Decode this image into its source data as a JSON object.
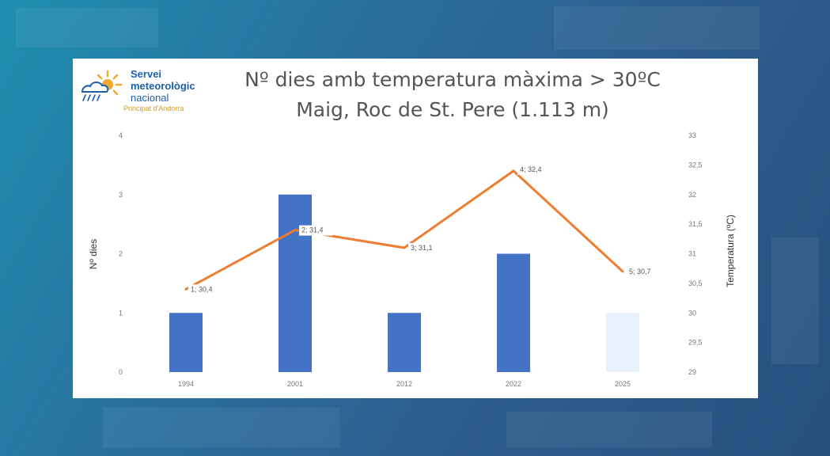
{
  "logo": {
    "line1": "Servei",
    "line2": "meteorològic",
    "line3": "nacional",
    "sub": "Principat d'Andorra",
    "icon": "sun-cloud-rain-icon"
  },
  "colors": {
    "bar": "#4472c4",
    "bar_last": "#e8f1fb",
    "line": "#ed7d31",
    "logo_blue": "#1d5fa8",
    "logo_orange": "#f0a830"
  },
  "chart_data": {
    "type": "bar",
    "title": "Nº dies amb temperatura màxima > 30ºC",
    "subtitle": "Maig, Roc de St. Pere (1.113 m)",
    "categories": [
      "1994",
      "2001",
      "2012",
      "2022",
      "2025"
    ],
    "ylabel": "Nº dies",
    "ylabel_right": "Temperatura (ºC)",
    "ylim": [
      0,
      4
    ],
    "ylim_right": [
      29,
      33
    ],
    "y_ticks": [
      "0",
      "1",
      "2",
      "3",
      "4"
    ],
    "y_ticks_right": [
      "29",
      "29,5",
      "30",
      "30,5",
      "31",
      "31,5",
      "32",
      "32,5",
      "33"
    ],
    "grid": false,
    "series": [
      {
        "type": "bar",
        "values": [
          1,
          3,
          1,
          2,
          1
        ]
      },
      {
        "type": "line",
        "axis": "right",
        "values": [
          30.4,
          31.4,
          31.1,
          32.4,
          30.7
        ]
      }
    ],
    "data_labels": [
      "1; 30,4",
      "2; 31,4",
      "3; 31,1",
      "4; 32,4",
      "5; 30,7"
    ]
  }
}
